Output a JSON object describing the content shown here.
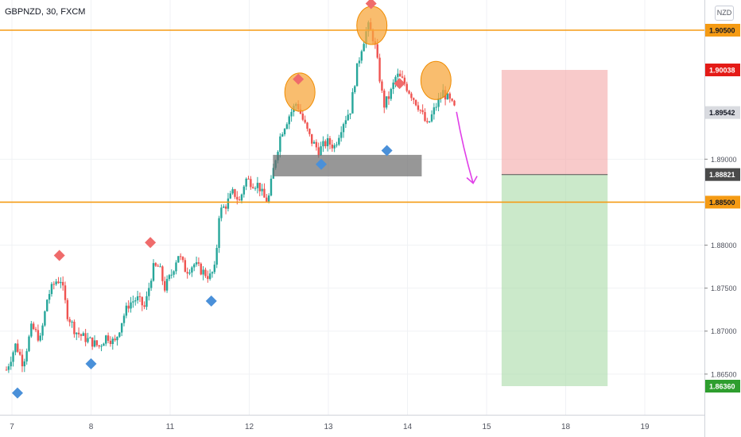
{
  "header": {
    "title": "GBPNZD, 30, FXCM",
    "currency": "NZD"
  },
  "colors": {
    "up": "#26a69a",
    "down": "#ef5350",
    "level": "#f59b14",
    "circle": "#f7a73d",
    "swing_high": "#ef6b6b",
    "swing_low": "#4a90d9",
    "zone": "#6b6b6b",
    "stop": "#f4a6a6",
    "target": "#a9dba6",
    "arrow": "#e040e8",
    "stop_label": "#e41b17",
    "target_label": "#2e9e2e",
    "current_label": "#4a4a4a"
  },
  "chart_data": {
    "type": "candlestick",
    "symbol": "GBPNZD",
    "timeframe": "30",
    "source": "FXCM",
    "x_ticks": [
      {
        "d": 7,
        "label": "7"
      },
      {
        "d": 8,
        "label": "8"
      },
      {
        "d": 9,
        "label": "11"
      },
      {
        "d": 10,
        "label": "12"
      },
      {
        "d": 11,
        "label": "13"
      },
      {
        "d": 12,
        "label": "14"
      },
      {
        "d": 13,
        "label": "15"
      },
      {
        "d": 14,
        "label": "18"
      },
      {
        "d": 15,
        "label": "19"
      }
    ],
    "x_range": [
      6.93,
      15.73
    ],
    "y_range": [
      1.8595,
      1.9126
    ],
    "y_ticks": [
      "1.86500",
      "1.87000",
      "1.87500",
      "1.88000",
      "1.89000"
    ],
    "price_levels": [
      {
        "label": "1.90500",
        "value": 1.905,
        "kind": "level"
      },
      {
        "label": "1.90038",
        "value": 1.90038,
        "kind": "stop"
      },
      {
        "label": "1.89542",
        "value": 1.89542,
        "kind": "last"
      },
      {
        "label": "1.88821",
        "value": 1.88821,
        "kind": "entry"
      },
      {
        "label": "1.88500",
        "value": 1.885,
        "kind": "level"
      },
      {
        "label": "1.86360",
        "value": 1.8636,
        "kind": "target"
      }
    ],
    "path": [
      [
        6.93,
        1.8655
      ],
      [
        7.05,
        1.8685
      ],
      [
        7.14,
        1.8662
      ],
      [
        7.25,
        1.8705
      ],
      [
        7.36,
        1.869
      ],
      [
        7.45,
        1.874
      ],
      [
        7.55,
        1.8758
      ],
      [
        7.62,
        1.876
      ],
      [
        7.7,
        1.872
      ],
      [
        7.8,
        1.87
      ],
      [
        7.9,
        1.8693
      ],
      [
        8.0,
        1.8688
      ],
      [
        8.1,
        1.8682
      ],
      [
        8.2,
        1.8695
      ],
      [
        8.3,
        1.8686
      ],
      [
        8.4,
        1.8715
      ],
      [
        8.48,
        1.8732
      ],
      [
        8.58,
        1.8738
      ],
      [
        8.68,
        1.8727
      ],
      [
        8.78,
        1.8773
      ],
      [
        8.86,
        1.8775
      ],
      [
        8.93,
        1.875
      ],
      [
        9.02,
        1.8767
      ],
      [
        9.1,
        1.879
      ],
      [
        9.2,
        1.877
      ],
      [
        9.3,
        1.8778
      ],
      [
        9.4,
        1.877
      ],
      [
        9.5,
        1.8763
      ],
      [
        9.57,
        1.8773
      ],
      [
        9.62,
        1.8838
      ],
      [
        9.7,
        1.8846
      ],
      [
        9.8,
        1.8862
      ],
      [
        9.88,
        1.885
      ],
      [
        9.95,
        1.8877
      ],
      [
        10.05,
        1.8872
      ],
      [
        10.12,
        1.887
      ],
      [
        10.18,
        1.8855
      ],
      [
        10.24,
        1.8852
      ],
      [
        10.32,
        1.8896
      ],
      [
        10.4,
        1.893
      ],
      [
        10.5,
        1.895
      ],
      [
        10.6,
        1.8966
      ],
      [
        10.68,
        1.8945
      ],
      [
        10.78,
        1.8922
      ],
      [
        10.88,
        1.891
      ],
      [
        10.98,
        1.892
      ],
      [
        11.08,
        1.8915
      ],
      [
        11.18,
        1.8942
      ],
      [
        11.28,
        1.8958
      ],
      [
        11.35,
        1.9
      ],
      [
        11.42,
        1.903
      ],
      [
        11.5,
        1.9055
      ],
      [
        11.58,
        1.9038
      ],
      [
        11.64,
        1.9
      ],
      [
        11.7,
        1.8962
      ],
      [
        11.78,
        1.8975
      ],
      [
        11.86,
        1.8998
      ],
      [
        11.95,
        1.899
      ],
      [
        12.05,
        1.8975
      ],
      [
        12.15,
        1.896
      ],
      [
        12.25,
        1.8938
      ],
      [
        12.35,
        1.896
      ],
      [
        12.45,
        1.8978
      ],
      [
        12.55,
        1.8965
      ],
      [
        12.62,
        1.8955
      ]
    ],
    "swing_highs": [
      [
        7.6,
        1.8788
      ],
      [
        8.75,
        1.8803
      ],
      [
        10.62,
        1.8993
      ],
      [
        11.54,
        1.9081
      ],
      [
        11.9,
        1.8988
      ]
    ],
    "swing_lows": [
      [
        7.07,
        1.8628
      ],
      [
        8.0,
        1.8662
      ],
      [
        9.52,
        1.8735
      ],
      [
        10.91,
        1.8894
      ],
      [
        11.74,
        1.891
      ]
    ],
    "circles": [
      [
        10.64,
        1.8971,
        1.8985
      ],
      [
        11.55,
        1.9049,
        1.9062
      ],
      [
        12.36,
        1.8985,
        1.8998
      ]
    ],
    "zone": [
      [
        10.3,
        1.888
      ],
      [
        12.18,
        1.8905
      ]
    ],
    "short_position": {
      "start": 13.19,
      "end": 14.53,
      "stop": 1.90038,
      "entry": 1.88821,
      "target": 1.8636
    },
    "arrow": [
      [
        12.62,
        1.8955
      ],
      [
        12.83,
        1.8872
      ]
    ]
  }
}
